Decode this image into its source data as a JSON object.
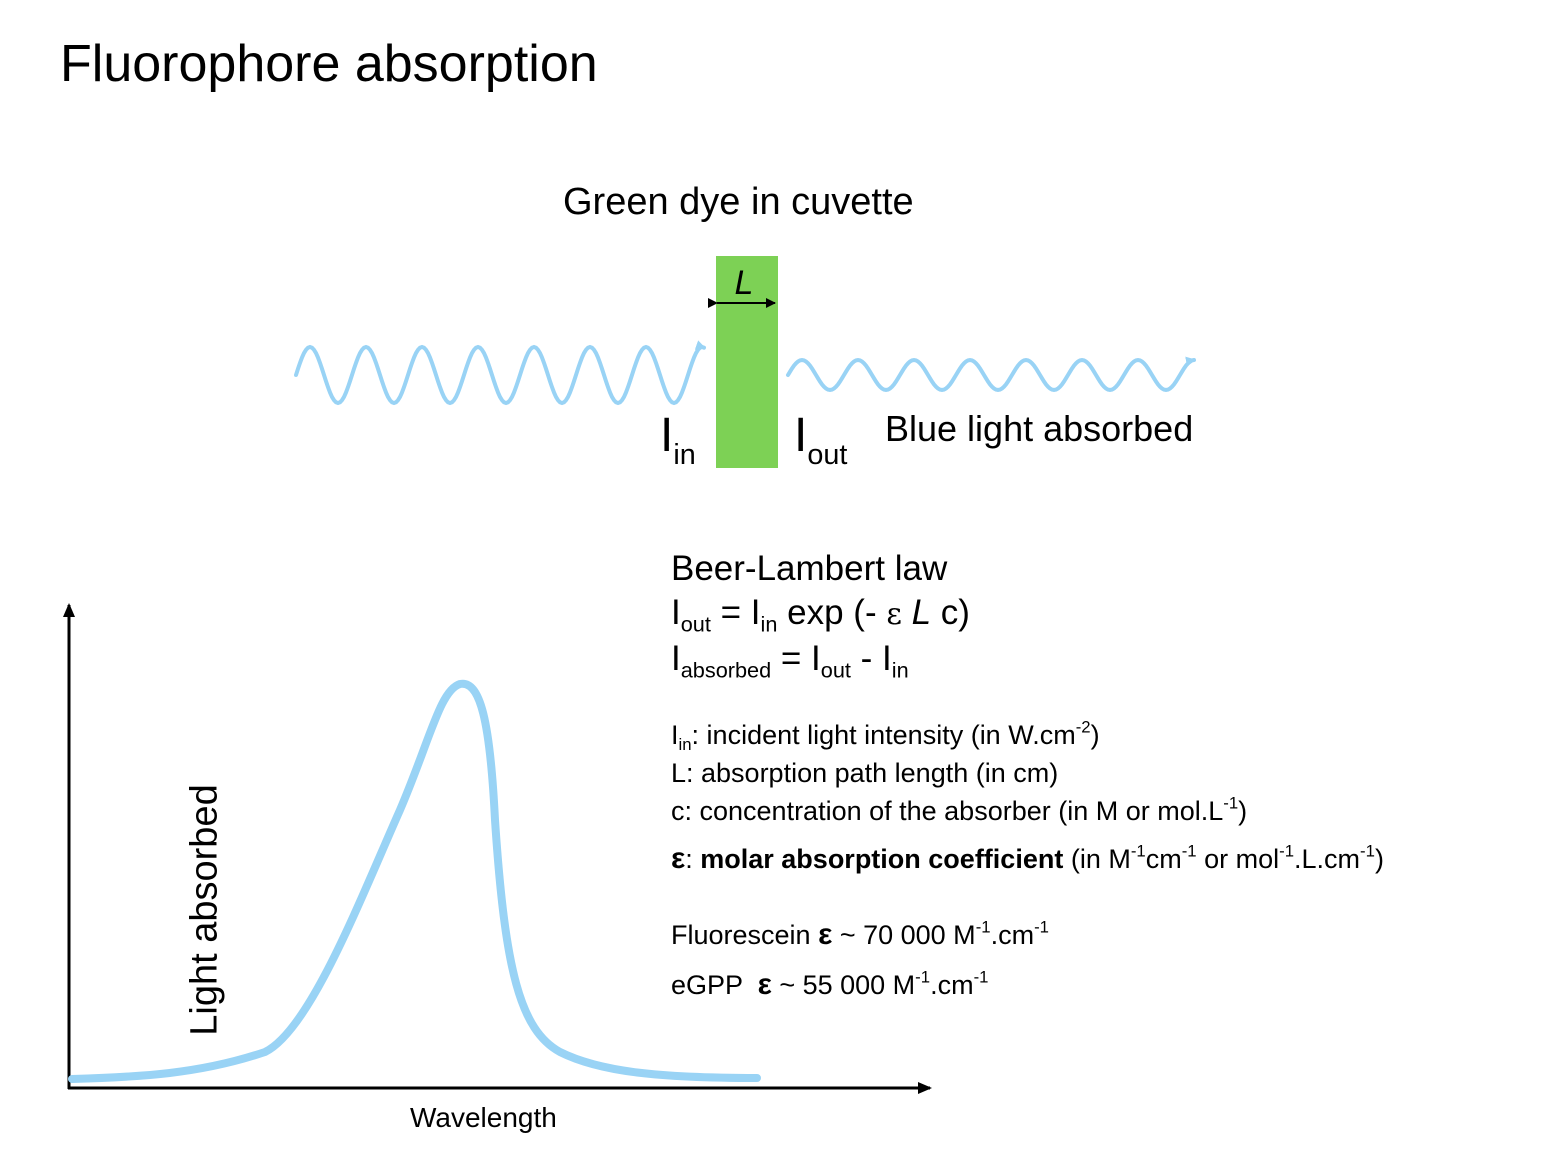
{
  "title": "Fluorophore absorption",
  "diagram": {
    "caption": "Green dye in cuvette",
    "path_label": "L",
    "i_in": {
      "base": "I",
      "sub": "in"
    },
    "i_out": {
      "base": "I",
      "sub": "out"
    },
    "result_label": "Blue light absorbed",
    "colors": {
      "cuvette": "#7dd155",
      "light": "#99d3f5",
      "curve": "#99d3f5"
    }
  },
  "beer_lambert": {
    "heading": "Beer-Lambert law",
    "eq1": {
      "lhs_base": "I",
      "lhs_sub": "out",
      "eq": " = I",
      "in_sub": "in",
      "rest1": " exp (- ",
      "eps": "ε",
      "space": " ",
      "L": "L",
      "rest2": " c)"
    },
    "eq2": {
      "lhs_base": "I",
      "lhs_sub": "absorbed",
      "mid": " = I",
      "out_sub": "out",
      "minus": " - I",
      "in_sub": "in"
    }
  },
  "definitions": {
    "iin": {
      "base": "I",
      "sub": "in",
      "text": ": incident light intensity (in W.cm",
      "sup": "-2",
      "close": ")"
    },
    "L": "L: absorption path length (in cm)",
    "c": {
      "text": "c: concentration of the absorber (in M or mol.L",
      "sup": "-1",
      "close": ")"
    },
    "eps": {
      "symbol": "ε",
      "colon": ": ",
      "bold": "molar absorption coefficient",
      "t1": " (in M",
      "s1": "-1",
      "t2": "cm",
      "s2": "-1",
      "t3": " or mol",
      "s3": "-1",
      "t4": ".L.cm",
      "s4": "-1",
      "t5": ")"
    }
  },
  "examples": [
    {
      "name": "Fluorescein ",
      "symbol": "ε",
      "value": " ~ 70 000 M",
      "s1": "-1",
      "mid": ".cm",
      "s2": "-1"
    },
    {
      "name": "eGPP  ",
      "symbol": "ε",
      "value": " ~ 55 000 M",
      "s1": "-1",
      "mid": ".cm",
      "s2": "-1"
    }
  ],
  "plot": {
    "ylabel": "Light absorbed",
    "xlabel": "Wavelength"
  }
}
